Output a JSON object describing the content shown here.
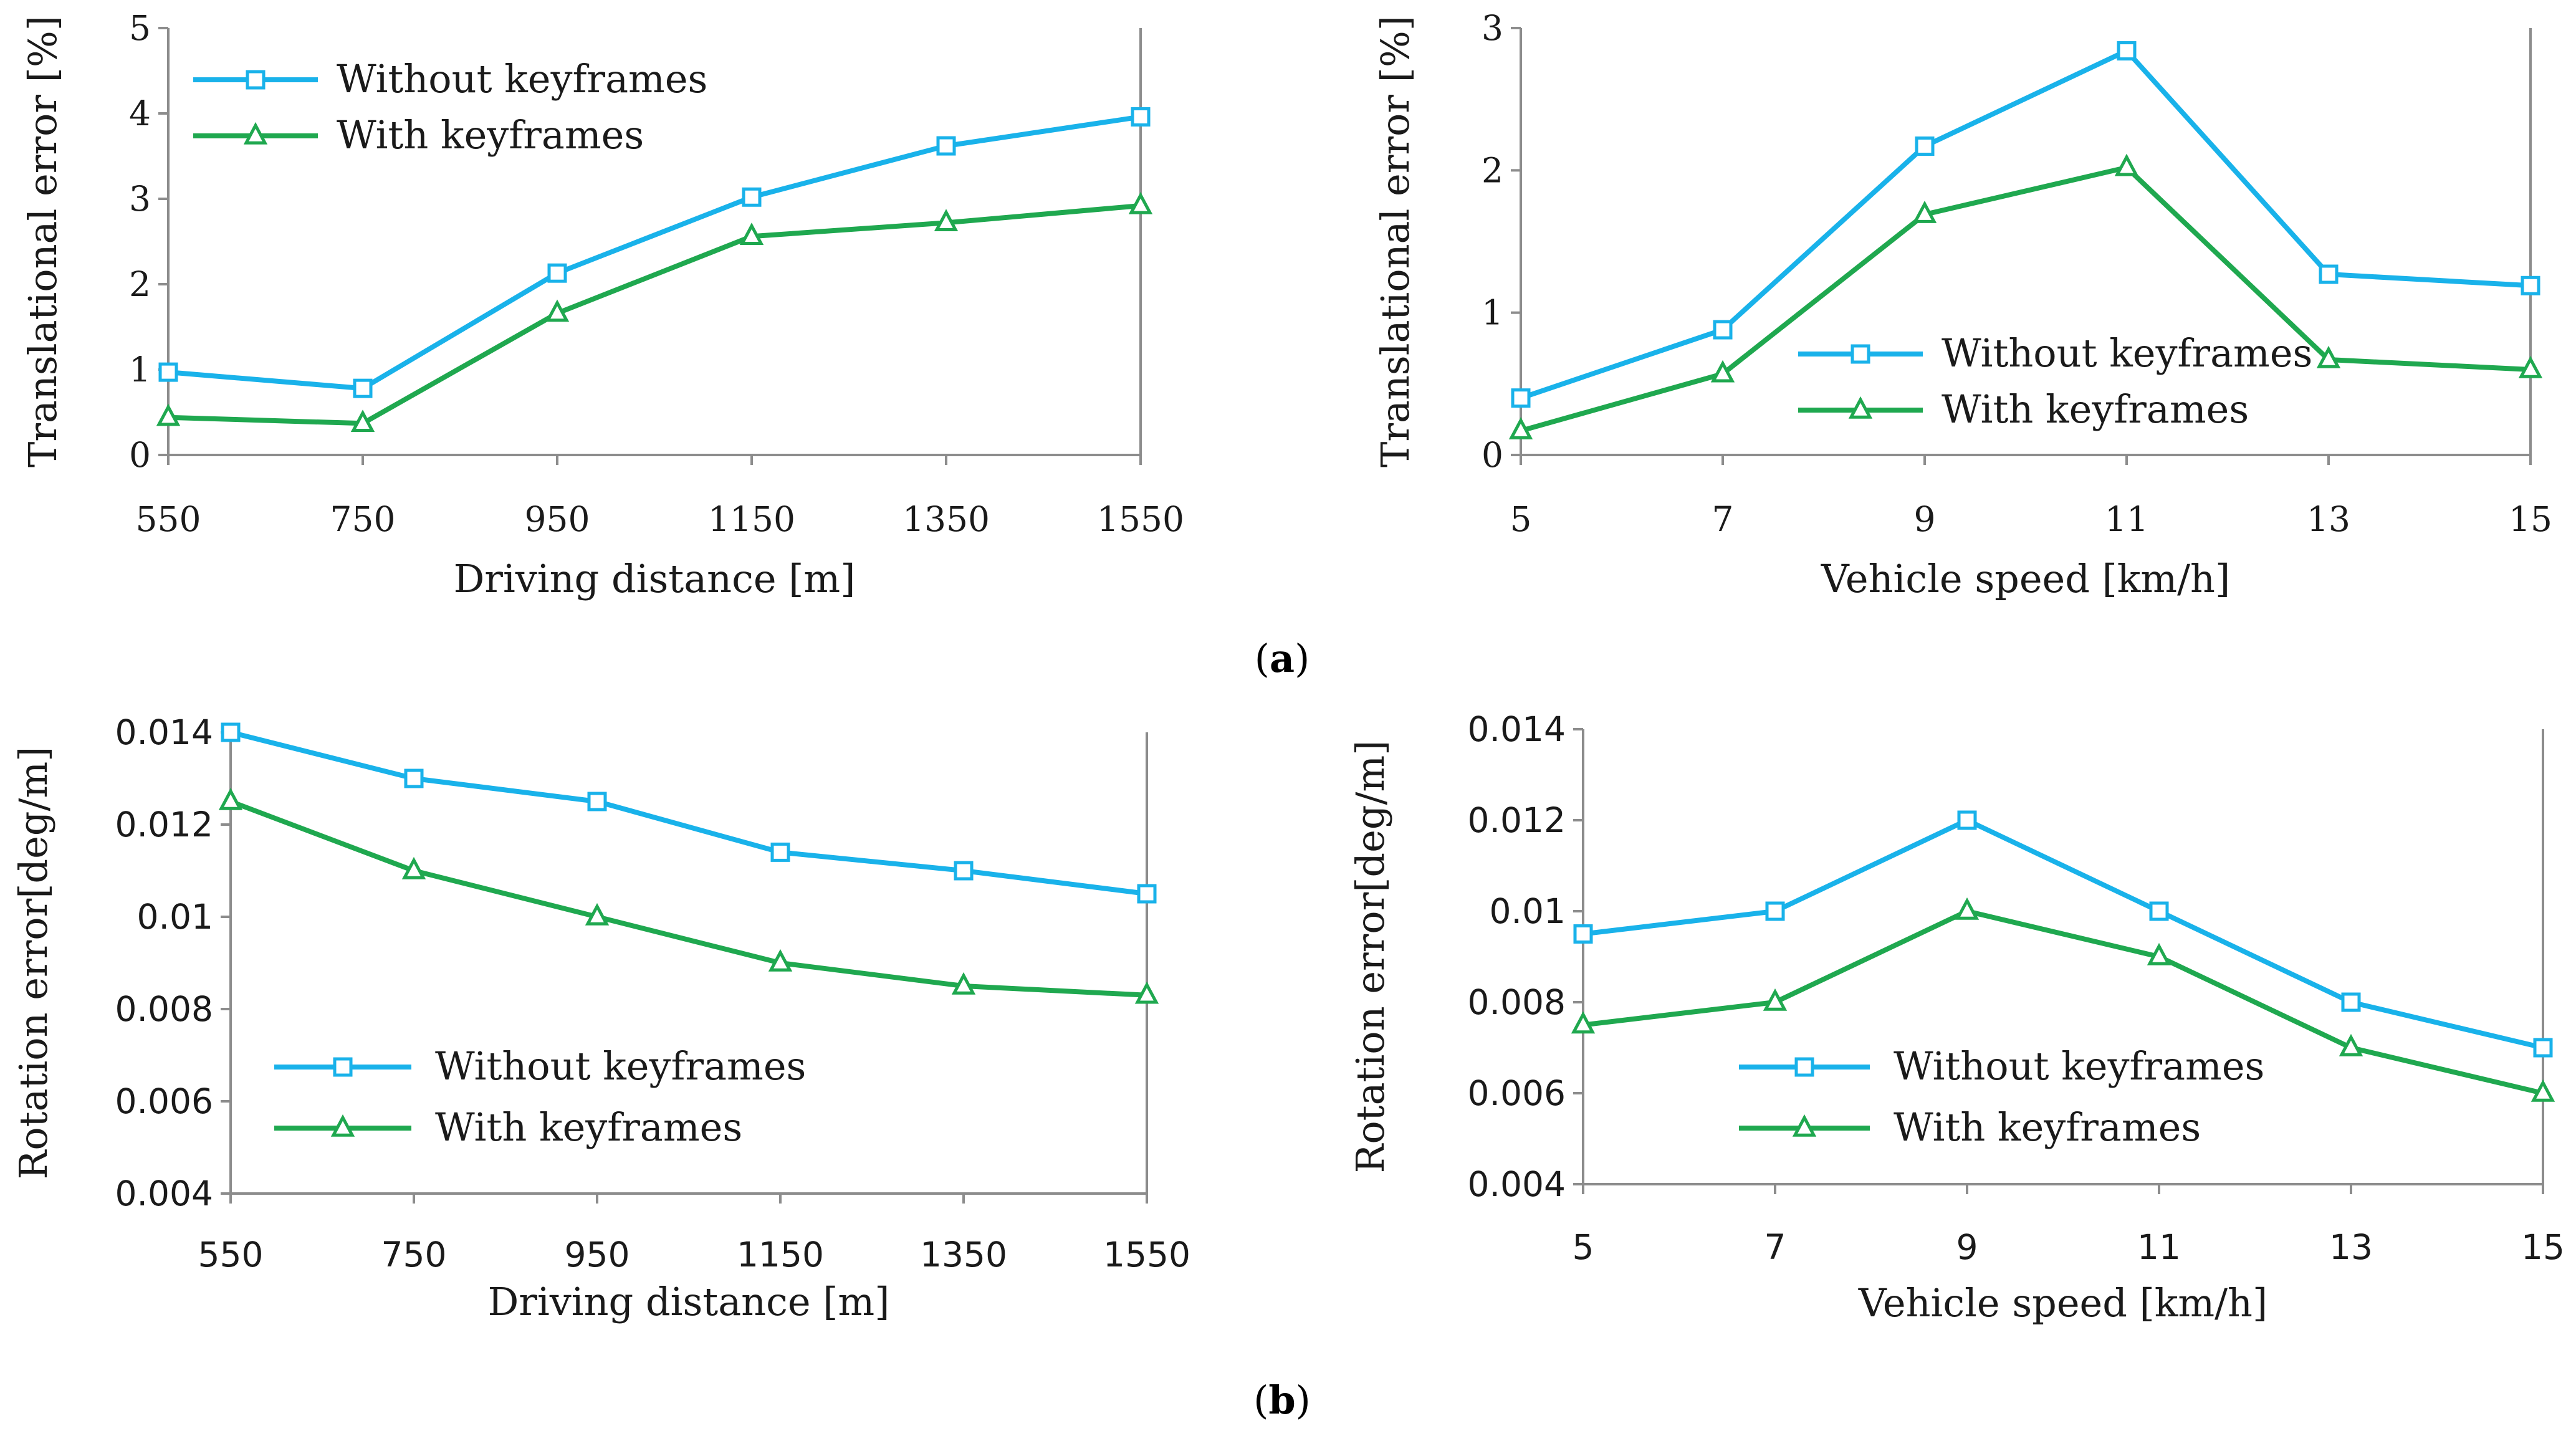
{
  "captions": {
    "a": "a",
    "b": "b"
  },
  "chart_data": [
    {
      "type": "line",
      "panel": "a",
      "xlabel": "Driving distance [m]",
      "ylabel": "Translational error [%]",
      "x": [
        550,
        750,
        950,
        1150,
        1350,
        1550
      ],
      "xticks": [
        "550",
        "750",
        "950",
        "1150",
        "1350",
        "1550"
      ],
      "ylim": [
        0,
        5
      ],
      "yticks": [
        "0",
        "1",
        "2",
        "3",
        "4",
        "5"
      ],
      "legend_position": "top-left",
      "grid": false,
      "series": [
        {
          "name": "Without keyframes",
          "marker": "square",
          "color": "#19b2ea",
          "values": [
            0.97,
            0.78,
            2.13,
            3.02,
            3.62,
            3.96
          ]
        },
        {
          "name": "With keyframes",
          "marker": "triangle",
          "color": "#1fa84f",
          "values": [
            0.44,
            0.37,
            1.66,
            2.56,
            2.72,
            2.92
          ]
        }
      ]
    },
    {
      "type": "line",
      "panel": "a",
      "xlabel": "Vehicle speed [km/h]",
      "ylabel": "Translational error [%]",
      "x": [
        5,
        7,
        9,
        11,
        13,
        15
      ],
      "xticks": [
        "5",
        "7",
        "9",
        "11",
        "13",
        "15"
      ],
      "ylim": [
        0,
        3
      ],
      "yticks": [
        "0",
        "1",
        "2",
        "3"
      ],
      "legend_position": "center",
      "grid": false,
      "series": [
        {
          "name": "Without keyframes",
          "marker": "square",
          "color": "#19b2ea",
          "values": [
            0.4,
            0.88,
            2.17,
            2.84,
            1.27,
            1.19
          ]
        },
        {
          "name": "With keyframes",
          "marker": "triangle",
          "color": "#1fa84f",
          "values": [
            0.17,
            0.57,
            1.69,
            2.02,
            0.67,
            0.6
          ]
        }
      ]
    },
    {
      "type": "line",
      "panel": "b",
      "xlabel": "Driving distance [m]",
      "ylabel": "Rotation error[deg/m]",
      "x": [
        550,
        750,
        950,
        1150,
        1350,
        1550
      ],
      "xticks": [
        "550",
        "750",
        "950",
        "1150",
        "1350",
        "1550"
      ],
      "ylim": [
        0.004,
        0.014
      ],
      "yticks": [
        "0.004",
        "0.006",
        "0.008",
        "0.01",
        "0.012",
        "0.014"
      ],
      "legend_position": "bottom-left",
      "grid": false,
      "series": [
        {
          "name": "Without keyframes",
          "marker": "square",
          "color": "#19b2ea",
          "values": [
            0.014,
            0.013,
            0.0125,
            0.0114,
            0.011,
            0.0105
          ]
        },
        {
          "name": "With keyframes",
          "marker": "triangle",
          "color": "#1fa84f",
          "values": [
            0.0125,
            0.011,
            0.01,
            0.009,
            0.0085,
            0.0083
          ]
        }
      ]
    },
    {
      "type": "line",
      "panel": "b",
      "xlabel": "Vehicle speed [km/h]",
      "ylabel": "Rotation error[deg/m]",
      "x": [
        5,
        7,
        9,
        11,
        13,
        15
      ],
      "xticks": [
        "5",
        "7",
        "9",
        "11",
        "13",
        "15"
      ],
      "ylim": [
        0.004,
        0.014
      ],
      "yticks": [
        "0.004",
        "0.006",
        "0.008",
        "0.01",
        "0.012",
        "0.014"
      ],
      "legend_position": "bottom-center",
      "grid": false,
      "series": [
        {
          "name": "Without keyframes",
          "marker": "square",
          "color": "#19b2ea",
          "values": [
            0.0095,
            0.01,
            0.012,
            0.01,
            0.008,
            0.007
          ]
        },
        {
          "name": "With keyframes",
          "marker": "triangle",
          "color": "#1fa84f",
          "values": [
            0.0075,
            0.008,
            0.01,
            0.009,
            0.007,
            0.006
          ]
        }
      ]
    }
  ]
}
